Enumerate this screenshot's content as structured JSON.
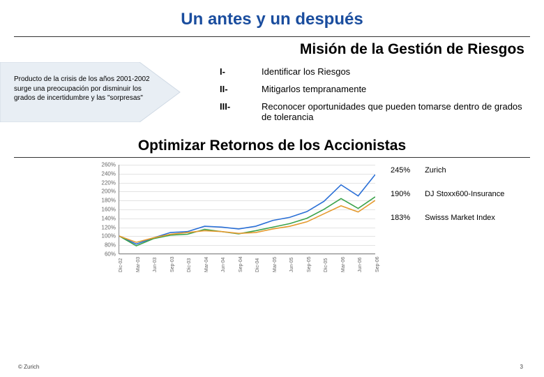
{
  "slide": {
    "title": "Un antes y un después",
    "section1_title": "Misión de la Gestión de Riesgos",
    "section2_title": "Optimizar Retornos de los Accionistas"
  },
  "sidebar": {
    "text": "Producto de la crisis de los años 2001-2002 surge una preocupación por disminuir los grados de incertidumbre y las \"sorpresas\"",
    "arrow_fill": "#e8eef4",
    "arrow_stroke": "#cfd9e4"
  },
  "mission": {
    "items": [
      {
        "num": "I-",
        "text": "Identificar los Riesgos"
      },
      {
        "num": "II-",
        "text": "Mitigarlos tempranamente"
      },
      {
        "num": "III-",
        "text": "Reconocer oportunidades que pueden tomarse dentro de grados de tolerancia"
      }
    ]
  },
  "chart": {
    "type": "line",
    "ylim": [
      60,
      260
    ],
    "ytick_step": 20,
    "y_format_suffix": "%",
    "x_categories": [
      "Dic-02",
      "Mar-03",
      "Jun-03",
      "Sep-03",
      "Dic-03",
      "Mar-04",
      "Jun-04",
      "Sep-04",
      "Dic-04",
      "Mar-05",
      "Jun-05",
      "Sep-05",
      "Dic-05",
      "Mar-06",
      "Jun-06",
      "Sep-06"
    ],
    "grid_color": "#e3e3e3",
    "axis_color": "#888888",
    "label_fontsize": 8,
    "series": [
      {
        "name": "Zurich",
        "color": "#2a6fd6",
        "legend_pct": "245%",
        "values": [
          100,
          82,
          96,
          108,
          110,
          122,
          120,
          116,
          122,
          135,
          142,
          155,
          178,
          215,
          190,
          238
        ]
      },
      {
        "name": "DJ Stoxx600-Insurance",
        "color": "#3aa24a",
        "legend_pct": "190%",
        "values": [
          100,
          78,
          94,
          102,
          104,
          115,
          110,
          105,
          112,
          120,
          128,
          140,
          160,
          184,
          162,
          188
        ]
      },
      {
        "name": "Swisss Market Index",
        "color": "#e59a2e",
        "legend_pct": "183%",
        "values": [
          100,
          86,
          96,
          104,
          108,
          112,
          110,
          106,
          108,
          116,
          122,
          132,
          150,
          168,
          154,
          180
        ]
      }
    ]
  },
  "footer": {
    "copyright": "© Zurich",
    "page": "3"
  }
}
